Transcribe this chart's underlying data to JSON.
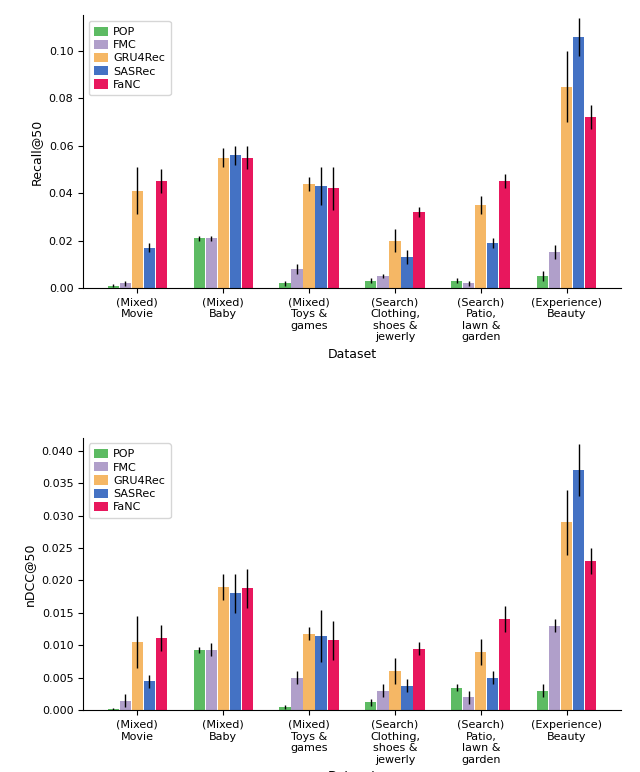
{
  "categories": [
    "(Mixed)\nMovie",
    "(Mixed)\nBaby",
    "(Mixed)\nToys &\ngames",
    "(Search)\nClothing,\nshoes &\njewerly",
    "(Search)\nPatio,\nlawn &\ngarden",
    "(Experience)\nBeauty"
  ],
  "methods": [
    "POP",
    "FMC",
    "GRU4Rec",
    "SASRec",
    "FaNC"
  ],
  "colors": [
    "#5dbb63",
    "#b09fca",
    "#f5b765",
    "#4472c4",
    "#e8175d"
  ],
  "recall_values": [
    [
      0.001,
      0.002,
      0.041,
      0.017,
      0.045
    ],
    [
      0.021,
      0.021,
      0.055,
      0.056,
      0.055
    ],
    [
      0.002,
      0.008,
      0.044,
      0.043,
      0.042
    ],
    [
      0.003,
      0.005,
      0.02,
      0.013,
      0.032
    ],
    [
      0.003,
      0.002,
      0.035,
      0.019,
      0.045
    ],
    [
      0.005,
      0.015,
      0.085,
      0.106,
      0.072
    ]
  ],
  "recall_errors": [
    [
      0.0005,
      0.001,
      0.01,
      0.002,
      0.005
    ],
    [
      0.001,
      0.001,
      0.004,
      0.004,
      0.005
    ],
    [
      0.001,
      0.002,
      0.003,
      0.008,
      0.009
    ],
    [
      0.001,
      0.001,
      0.005,
      0.003,
      0.002
    ],
    [
      0.001,
      0.001,
      0.004,
      0.002,
      0.003
    ],
    [
      0.002,
      0.003,
      0.015,
      0.008,
      0.005
    ]
  ],
  "ndcg_values": [
    [
      0.0002,
      0.0015,
      0.0105,
      0.0045,
      0.0112
    ],
    [
      0.0093,
      0.0093,
      0.019,
      0.018,
      0.0188
    ],
    [
      0.0005,
      0.005,
      0.0118,
      0.0115,
      0.0108
    ],
    [
      0.0012,
      0.003,
      0.006,
      0.0038,
      0.0095
    ],
    [
      0.0035,
      0.002,
      0.009,
      0.005,
      0.014
    ],
    [
      0.003,
      0.013,
      0.029,
      0.037,
      0.023
    ]
  ],
  "ndcg_errors": [
    [
      0.0002,
      0.001,
      0.004,
      0.001,
      0.002
    ],
    [
      0.0005,
      0.001,
      0.002,
      0.003,
      0.003
    ],
    [
      0.0003,
      0.001,
      0.001,
      0.004,
      0.003
    ],
    [
      0.0005,
      0.001,
      0.002,
      0.001,
      0.001
    ],
    [
      0.0005,
      0.001,
      0.002,
      0.001,
      0.002
    ],
    [
      0.001,
      0.001,
      0.005,
      0.004,
      0.002
    ]
  ],
  "recall_ylabel": "Recall@50",
  "ndcg_ylabel": "nDCC@50",
  "xlabel": "Dataset",
  "recall_ylim": [
    0,
    0.115
  ],
  "ndcg_ylim": [
    0,
    0.042
  ],
  "recall_yticks": [
    0.0,
    0.02,
    0.04,
    0.06,
    0.08,
    0.1
  ],
  "ndcg_yticks": [
    0.0,
    0.005,
    0.01,
    0.015,
    0.02,
    0.025,
    0.03,
    0.035,
    0.04
  ]
}
